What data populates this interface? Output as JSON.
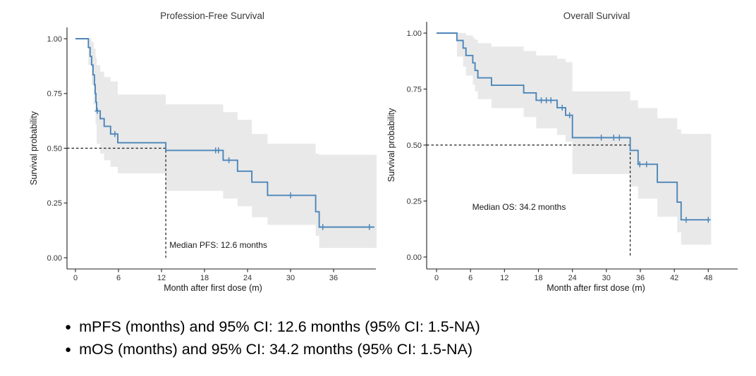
{
  "page": {
    "background": "#ffffff"
  },
  "chart_data": [
    {
      "type": "line",
      "subtype": "kaplan-meier-step",
      "title": "Profession-Free Survival",
      "xlabel": "Month after first dose (m)",
      "ylabel": "Survival probability",
      "xticks": [
        0,
        6,
        12,
        18,
        24,
        30,
        36
      ],
      "ytick_labels": [
        "0.00",
        "0.25",
        "0.50",
        "0.75",
        "1.00"
      ],
      "xlim": [
        0,
        42
      ],
      "ylim": [
        0,
        1
      ],
      "grid": false,
      "legend": "none",
      "colors": {
        "curve": "#4c86b9",
        "ci": "#e9e9e9",
        "dash": "#1a1a1a"
      },
      "median": {
        "x": 12.6,
        "label": "Median PFS: 12.6 months"
      },
      "annotation": {
        "text": "Median PFS: 12.6 months",
        "x": 13.1,
        "y": 0.045
      },
      "survival_points": [
        [
          0,
          1.0
        ],
        [
          1.8,
          0.96
        ],
        [
          2.05,
          0.92
        ],
        [
          2.25,
          0.88
        ],
        [
          2.45,
          0.835
        ],
        [
          2.65,
          0.79
        ],
        [
          2.75,
          0.75
        ],
        [
          2.85,
          0.71
        ],
        [
          2.95,
          0.67
        ],
        [
          3.45,
          0.635
        ],
        [
          4.0,
          0.6
        ],
        [
          4.9,
          0.565
        ],
        [
          5.9,
          0.525
        ],
        [
          12.6,
          0.49
        ],
        [
          20.6,
          0.445
        ],
        [
          22.6,
          0.395
        ],
        [
          24.6,
          0.345
        ],
        [
          26.8,
          0.285
        ],
        [
          33.5,
          0.21
        ],
        [
          34.0,
          0.14
        ]
      ],
      "end_of_followup": 41.7,
      "censor_marks": [
        [
          3.05,
          0.67
        ],
        [
          5.5,
          0.565
        ],
        [
          19.55,
          0.49
        ],
        [
          19.95,
          0.49
        ],
        [
          21.4,
          0.445
        ],
        [
          30.0,
          0.285
        ],
        [
          34.5,
          0.14
        ],
        [
          41.0,
          0.14
        ]
      ],
      "ci_steps": [
        [
          1.8,
          1.0,
          0.88
        ],
        [
          2.25,
          0.985,
          0.79
        ],
        [
          2.55,
          0.955,
          0.7
        ],
        [
          2.8,
          0.915,
          0.61
        ],
        [
          2.95,
          0.88,
          0.52
        ],
        [
          3.45,
          0.85,
          0.475
        ],
        [
          4.0,
          0.825,
          0.445
        ],
        [
          4.9,
          0.805,
          0.415
        ],
        [
          5.9,
          0.745,
          0.385
        ],
        [
          12.6,
          0.7,
          0.305
        ],
        [
          20.6,
          0.665,
          0.27
        ],
        [
          22.6,
          0.63,
          0.235
        ],
        [
          24.6,
          0.565,
          0.185
        ],
        [
          26.8,
          0.52,
          0.15
        ],
        [
          33.5,
          0.475,
          0.1
        ],
        [
          34.0,
          0.47,
          0.045
        ]
      ],
      "ci_end": 42.0
    },
    {
      "type": "line",
      "subtype": "kaplan-meier-step",
      "title": "Overall Survival",
      "xlabel": "Month after first dose (m)",
      "ylabel": "Survival probability",
      "xticks": [
        0,
        6,
        12,
        18,
        24,
        30,
        36,
        42,
        48
      ],
      "ytick_labels": [
        "0.00",
        "0.25",
        "0.50",
        "0.75",
        "1.00"
      ],
      "xlim": [
        0,
        53
      ],
      "ylim": [
        0,
        1
      ],
      "grid": false,
      "legend": "none",
      "colors": {
        "curve": "#4c86b9",
        "ci": "#e9e9e9",
        "dash": "#1a1a1a"
      },
      "median": {
        "x": 34.2,
        "label": "Median OS: 34.2 months"
      },
      "annotation": {
        "text": "Median OS: 34.2 months",
        "x": 6.3,
        "y": 0.21
      },
      "survival_points": [
        [
          0,
          1.0
        ],
        [
          3.6,
          0.967
        ],
        [
          4.7,
          0.933
        ],
        [
          5.2,
          0.9
        ],
        [
          6.4,
          0.867
        ],
        [
          6.8,
          0.833
        ],
        [
          7.3,
          0.8
        ],
        [
          9.7,
          0.767
        ],
        [
          15.4,
          0.733
        ],
        [
          17.6,
          0.7
        ],
        [
          21.3,
          0.667
        ],
        [
          22.8,
          0.633
        ],
        [
          24.0,
          0.533
        ],
        [
          34.2,
          0.476
        ],
        [
          35.6,
          0.414
        ],
        [
          39.0,
          0.334
        ],
        [
          42.5,
          0.245
        ],
        [
          43.2,
          0.166
        ]
      ],
      "end_of_followup": 48.3,
      "censor_marks": [
        [
          18.5,
          0.7
        ],
        [
          19.4,
          0.7
        ],
        [
          20.2,
          0.7
        ],
        [
          22.2,
          0.667
        ],
        [
          23.5,
          0.633
        ],
        [
          29.1,
          0.533
        ],
        [
          31.3,
          0.533
        ],
        [
          32.3,
          0.533
        ],
        [
          35.9,
          0.414
        ],
        [
          37.1,
          0.414
        ],
        [
          44.1,
          0.166
        ],
        [
          48.0,
          0.166
        ]
      ],
      "ci_steps": [
        [
          3.6,
          1.0,
          0.895
        ],
        [
          4.7,
          1.0,
          0.85
        ],
        [
          5.2,
          0.99,
          0.81
        ],
        [
          6.4,
          0.98,
          0.77
        ],
        [
          6.8,
          0.97,
          0.74
        ],
        [
          7.3,
          0.955,
          0.705
        ],
        [
          9.7,
          0.94,
          0.665
        ],
        [
          15.4,
          0.92,
          0.625
        ],
        [
          17.6,
          0.9,
          0.575
        ],
        [
          21.3,
          0.885,
          0.545
        ],
        [
          22.8,
          0.87,
          0.515
        ],
        [
          24.0,
          0.74,
          0.37
        ],
        [
          34.2,
          0.7,
          0.315
        ],
        [
          35.6,
          0.665,
          0.26
        ],
        [
          39.0,
          0.62,
          0.18
        ],
        [
          42.5,
          0.57,
          0.11
        ],
        [
          43.2,
          0.55,
          0.055
        ]
      ],
      "ci_end": 48.5
    }
  ],
  "summary": {
    "bullets": [
      "mPFS (months) and 95% CI: 12.6 months (95% CI: 1.5-NA)",
      "mOS (months) and 95% CI: 34.2 months (95% CI: 1.5-NA)"
    ]
  }
}
